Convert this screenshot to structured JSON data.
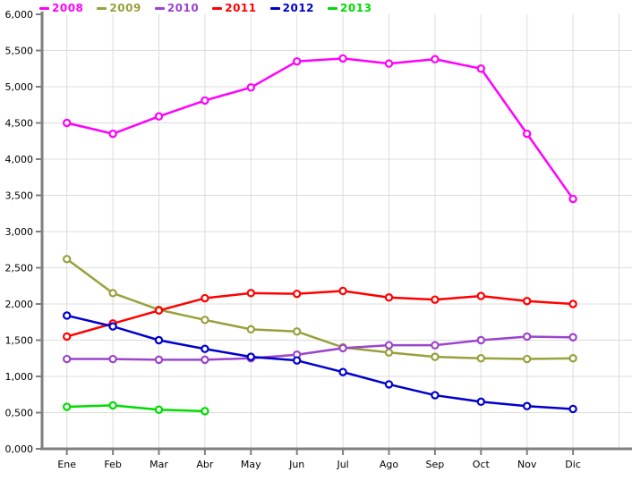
{
  "chart_data": {
    "type": "line",
    "title": "",
    "xlabel": "",
    "ylabel": "",
    "categories": [
      "Ene",
      "Feb",
      "Mar",
      "Abr",
      "May",
      "Jun",
      "Jul",
      "Ago",
      "Sep",
      "Oct",
      "Nov",
      "Dic"
    ],
    "y_axis": {
      "min": 0,
      "max": 6000,
      "step": 500,
      "tick_labels_bottom_to_top": [
        "0,000",
        "0,500",
        "1,000",
        "1,500",
        "2,000",
        "2,500",
        "3,000",
        "3,500",
        "4,000",
        "4,500",
        "5,000",
        "5,500",
        "6,000"
      ]
    },
    "grid": true,
    "legend_position": "top-left",
    "series": [
      {
        "name": "2008",
        "color": "#FF00FF",
        "values": [
          4500,
          4350,
          4590,
          4810,
          4990,
          5350,
          5390,
          5320,
          5380,
          5250,
          4350,
          3450
        ]
      },
      {
        "name": "2009",
        "color": "#99A03C",
        "values": [
          2620,
          2150,
          1920,
          1780,
          1650,
          1620,
          1400,
          1330,
          1270,
          1250,
          1240,
          1250
        ]
      },
      {
        "name": "2010",
        "color": "#9B44CC",
        "values": [
          1240,
          1240,
          1230,
          1230,
          1250,
          1300,
          1390,
          1430,
          1430,
          1500,
          1550,
          1540
        ]
      },
      {
        "name": "2011",
        "color": "#FF0000",
        "values": [
          1550,
          1730,
          1910,
          2080,
          2150,
          2140,
          2180,
          2090,
          2060,
          2110,
          2040,
          2000
        ]
      },
      {
        "name": "2012",
        "color": "#0000CC",
        "values": [
          1840,
          1690,
          1500,
          1380,
          1270,
          1220,
          1060,
          890,
          740,
          650,
          590,
          550
        ]
      },
      {
        "name": "2013",
        "color": "#00DC00",
        "values": [
          580,
          600,
          540,
          520,
          null,
          null,
          null,
          null,
          null,
          null,
          null,
          null
        ]
      }
    ]
  },
  "style_colors": {
    "grid": "#DCDCDC",
    "axis": "#7F7F7F",
    "background": "#FFFFFF",
    "label": "#000000"
  }
}
